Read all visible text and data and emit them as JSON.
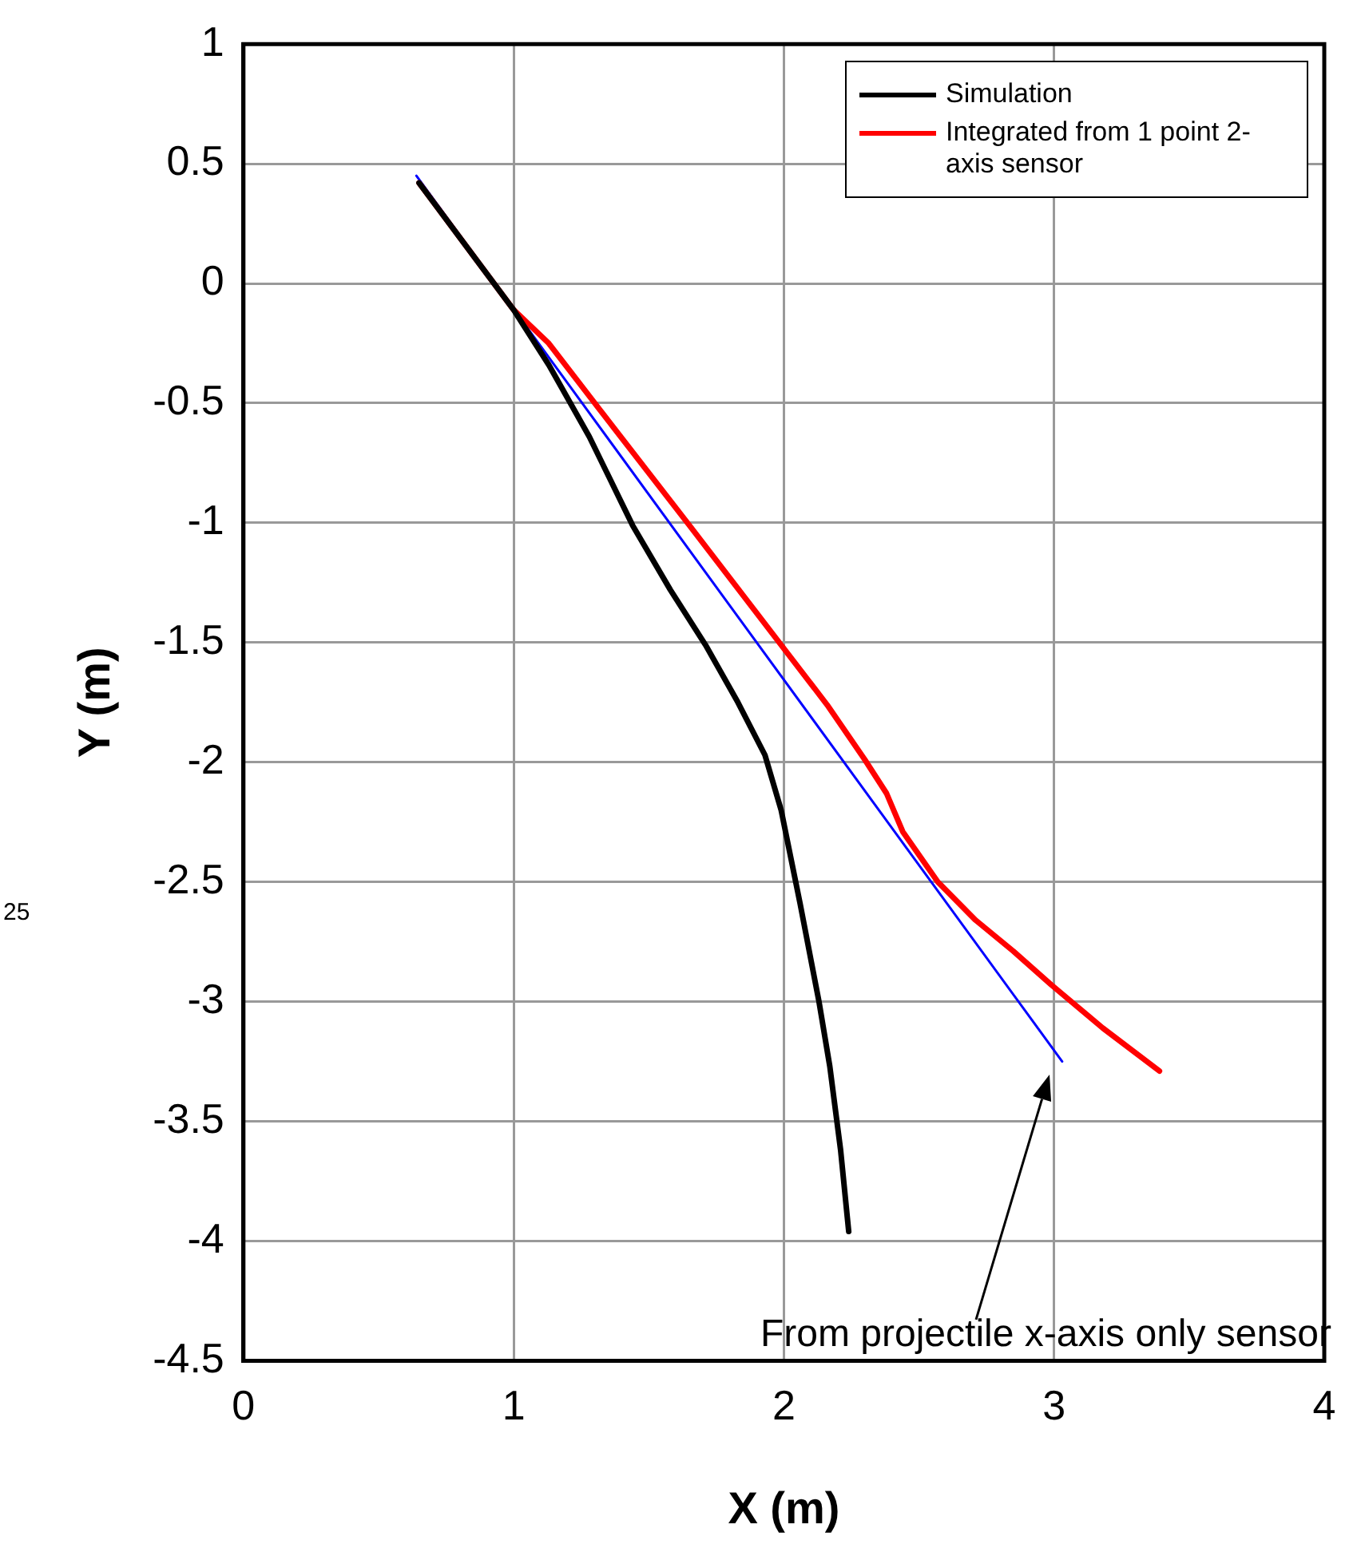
{
  "chart_data": {
    "type": "line",
    "xlabel": "X (m)",
    "ylabel": "Y (m)",
    "xlim": [
      0,
      4
    ],
    "xticks": [
      0,
      1,
      2,
      3,
      4
    ],
    "ylim": [
      -4.5,
      1
    ],
    "yticks": [
      -4.5,
      -4,
      -3.5,
      -3,
      -2.5,
      -2,
      -1.5,
      -1,
      -0.5,
      0,
      0.5,
      1
    ],
    "grid": true,
    "legend": "top right",
    "marker": "none",
    "line_style": "solid",
    "series": [
      {
        "name": "Simulation",
        "color": "#000000",
        "x": [
          0.65,
          1.0,
          1.13,
          1.28,
          1.44,
          1.58,
          1.71,
          1.83,
          1.93,
          1.99,
          2.06,
          2.13,
          2.17,
          2.21,
          2.24
        ],
        "values": [
          0.42,
          -0.11,
          -0.34,
          -0.64,
          -1.01,
          -1.28,
          -1.51,
          -1.75,
          -1.97,
          -2.2,
          -2.59,
          -3.0,
          -3.27,
          -3.62,
          -3.96
        ]
      },
      {
        "name": "Integrated from 1 point 2-axis sensor",
        "color": "#ff0000",
        "x": [
          0.65,
          1.0,
          1.13,
          1.3,
          1.65,
          1.99,
          2.16,
          2.3,
          2.38,
          2.44,
          2.57,
          2.71,
          2.85,
          2.99,
          3.18,
          3.39
        ],
        "values": [
          0.42,
          -0.11,
          -0.25,
          -0.5,
          -1.01,
          -1.51,
          -1.76,
          -1.99,
          -2.13,
          -2.29,
          -2.5,
          -2.66,
          -2.79,
          -2.93,
          -3.11,
          -3.29
        ]
      },
      {
        "color": "#0000ff",
        "x": [
          0.64,
          3.03
        ],
        "values": [
          0.45,
          -3.25
        ]
      }
    ],
    "annotations": [
      "25",
      "From projectile x-axis only sensor"
    ]
  }
}
